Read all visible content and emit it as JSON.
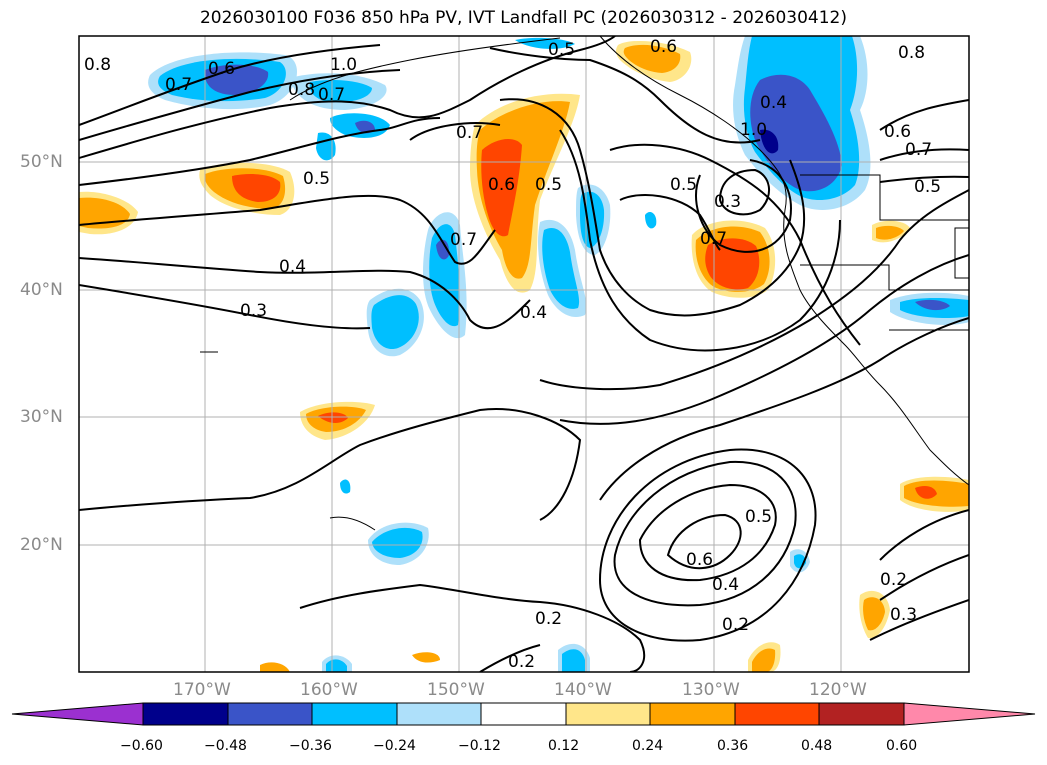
{
  "title": "2026030100 F036 850 hPa PV, IVT Landfall PC (2026030312 - 2026030412)",
  "lat_labels": [
    "50°N",
    "40°N",
    "30°N",
    "20°N"
  ],
  "lon_labels": [
    "170°W",
    "160°W",
    "150°W",
    "140°W",
    "130°W",
    "120°W"
  ],
  "contour_labels": [
    "0.6",
    "0.7",
    "1.0",
    "0.8",
    "0.7",
    "0.5",
    "0.7",
    "0.6",
    "0.5",
    "0.7",
    "0.4",
    "0.3",
    "0.4",
    "0.5",
    "0.6",
    "0.8",
    "0.3",
    "0.4",
    "1.0",
    "0.7",
    "0.6",
    "0.7",
    "0.5",
    "0.2",
    "0.2",
    "0.3",
    "0.2",
    "0.6",
    "0.4",
    "0.5",
    "0.2",
    "0.8",
    "0.5"
  ],
  "colorbar": {
    "ticks": [
      "−0.60",
      "−0.48",
      "−0.36",
      "−0.24",
      "−0.12",
      "0.12",
      "0.24",
      "0.36",
      "0.48",
      "0.60"
    ],
    "colors": [
      "#9b30d0",
      "#00008b",
      "#3a54c8",
      "#00bfff",
      "#aee0fa",
      "#ffffff",
      "#ffe68a",
      "#ffa500",
      "#ff4500",
      "#b22222",
      "#ff88aa"
    ]
  },
  "fill_colors": {
    "light_blue": "#aee0fa",
    "blue": "#00bfff",
    "royal": "#3a54c8",
    "navy": "#00008b",
    "yellow": "#ffe68a",
    "orange": "#ffa500",
    "red_orange": "#ff4500"
  }
}
